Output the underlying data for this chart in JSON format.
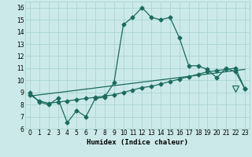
{
  "xlabel": "Humidex (Indice chaleur)",
  "xlim": [
    -0.5,
    23.5
  ],
  "ylim": [
    6,
    16.5
  ],
  "yticks": [
    6,
    7,
    8,
    9,
    10,
    11,
    12,
    13,
    14,
    15,
    16
  ],
  "xticks": [
    0,
    1,
    2,
    3,
    4,
    5,
    6,
    7,
    8,
    9,
    10,
    11,
    12,
    13,
    14,
    15,
    16,
    17,
    18,
    19,
    20,
    21,
    22,
    23
  ],
  "bg_color": "#cce9e9",
  "grid_color": "#aad4d4",
  "line_color": "#1a6b5e",
  "curve1_x": [
    0,
    1,
    2,
    3,
    4,
    5,
    6,
    7,
    8,
    9,
    10,
    11,
    12,
    13,
    14,
    15,
    16,
    17,
    18,
    19,
    20,
    21,
    22,
    23
  ],
  "curve1_y": [
    9.0,
    8.2,
    8.0,
    8.5,
    6.5,
    7.5,
    7.0,
    8.5,
    8.6,
    9.8,
    14.6,
    15.2,
    16.0,
    15.2,
    15.0,
    15.2,
    13.5,
    11.2,
    11.2,
    10.9,
    10.2,
    11.0,
    10.7,
    9.3
  ],
  "curve2_x": [
    0,
    1,
    2,
    3,
    4,
    5,
    6,
    7,
    8,
    9,
    10,
    11,
    12,
    13,
    14,
    15,
    16,
    17,
    18,
    19,
    20,
    21,
    22,
    23
  ],
  "curve2_y": [
    8.8,
    8.3,
    8.1,
    8.2,
    8.3,
    8.4,
    8.5,
    8.6,
    8.7,
    8.8,
    9.0,
    9.2,
    9.4,
    9.5,
    9.7,
    9.9,
    10.1,
    10.3,
    10.5,
    10.7,
    10.8,
    10.9,
    11.0,
    9.3
  ],
  "curve3_x": [
    0,
    23
  ],
  "curve3_y": [
    8.7,
    10.9
  ],
  "triangle_x": 22,
  "triangle_y": 9.3,
  "marker_size": 2.5,
  "linewidth": 0.9,
  "tick_fontsize": 5.5,
  "label_fontsize": 6.5
}
